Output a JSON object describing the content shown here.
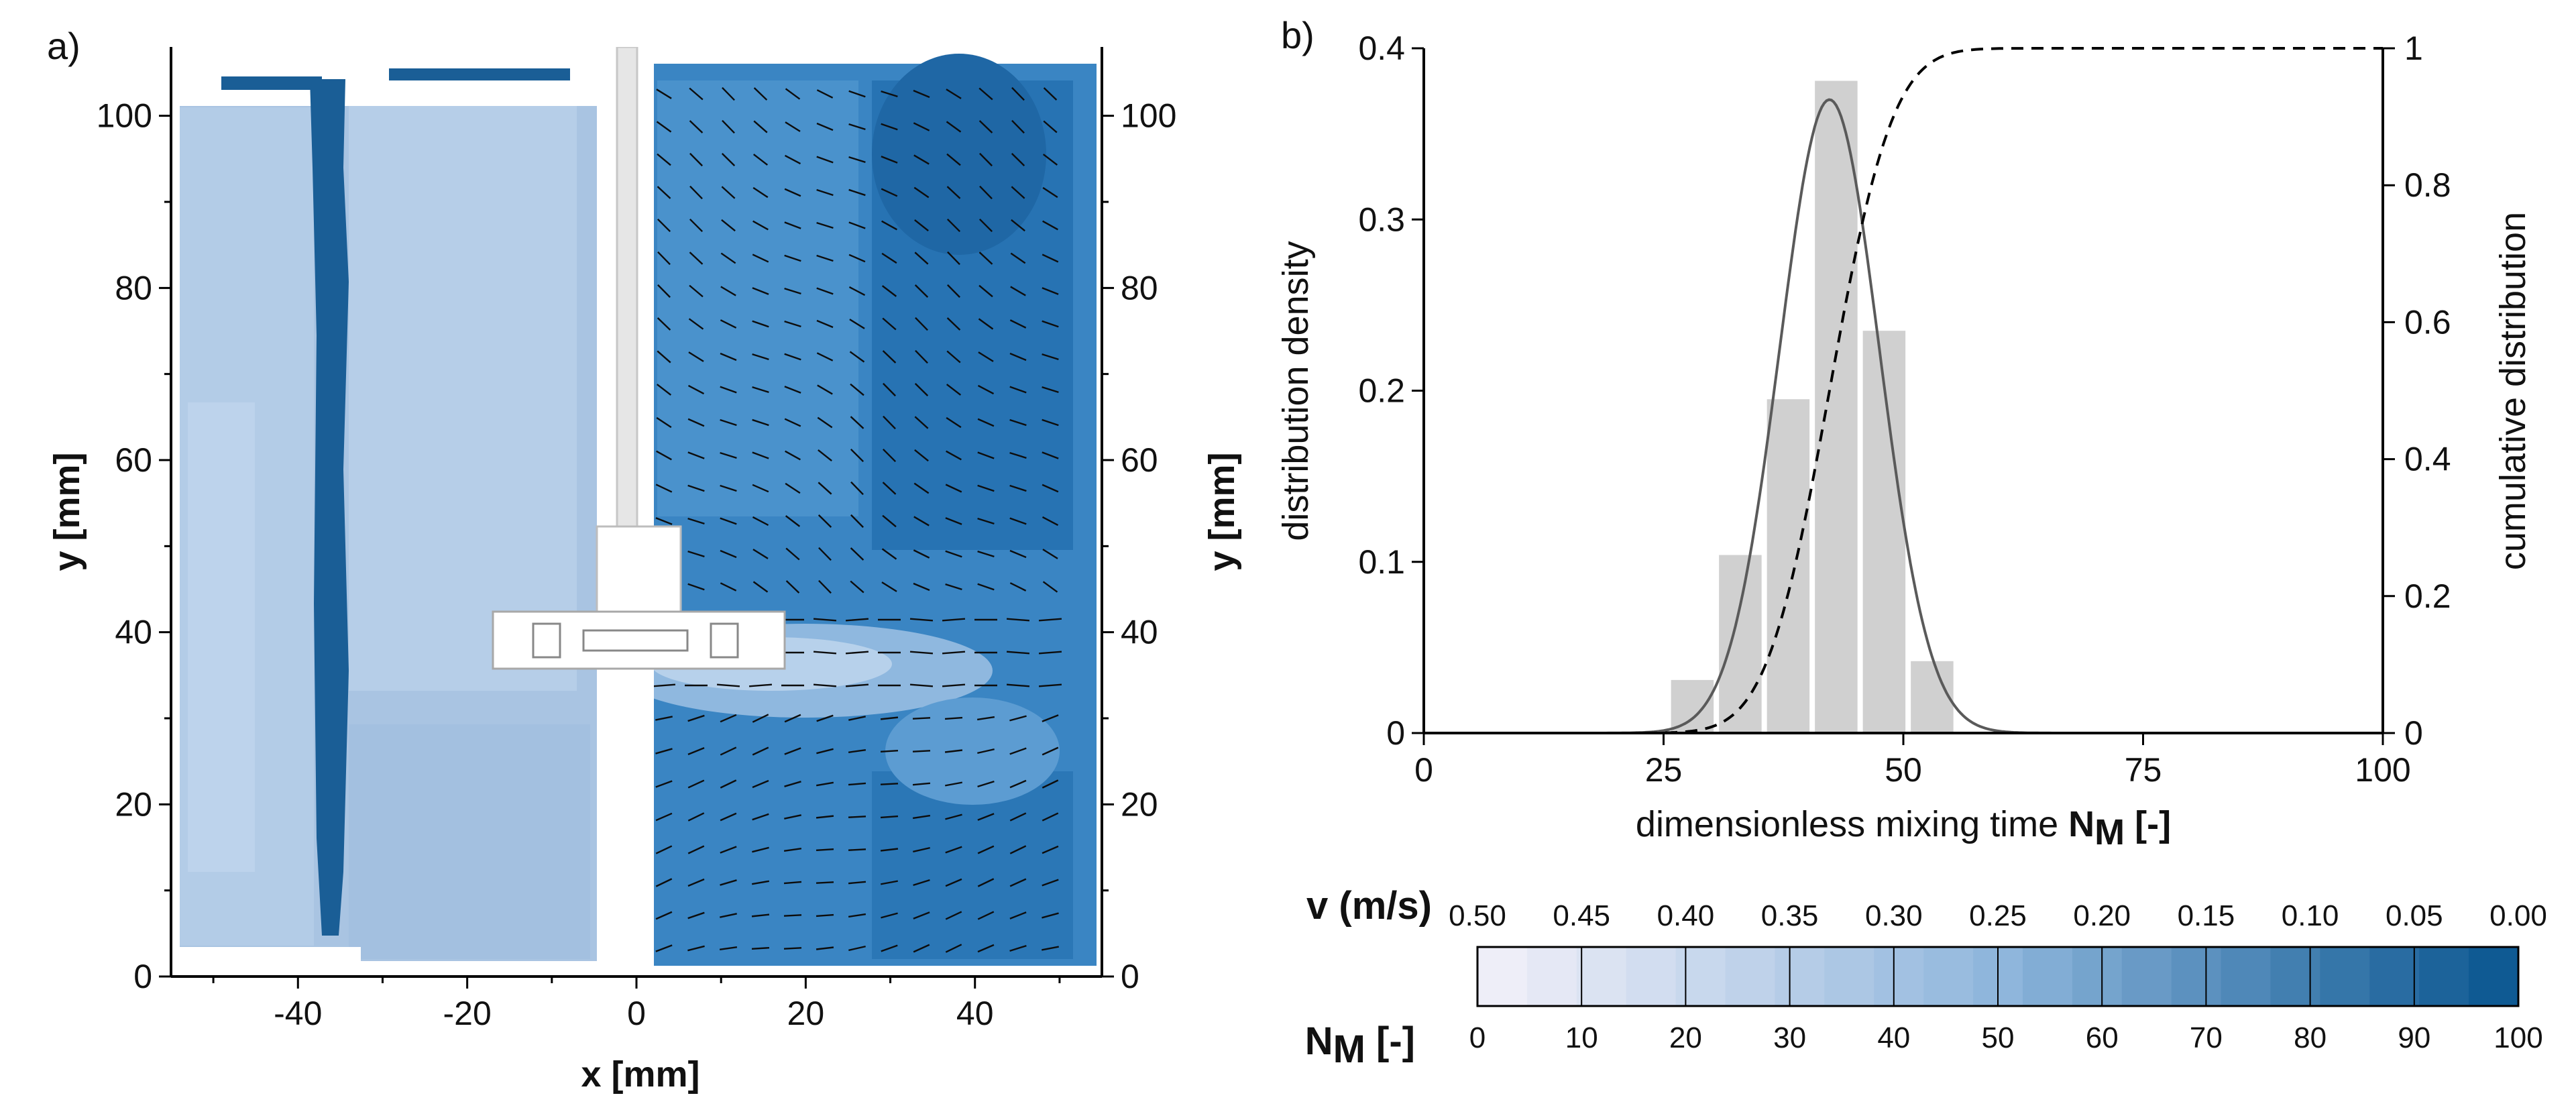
{
  "colors": {
    "scale_light": "#eeeef8",
    "scale_mid": "#8fb6dc",
    "scale_dark": "#0f5a93",
    "hist_bar": "#d0d0d0",
    "density_line": "#5a5a5a",
    "cumulative_line": "#000000",
    "impeller": "#ffffff"
  },
  "panel_a": {
    "label": "a)",
    "xlabel": "x [mm]",
    "ylabel_left": "y [mm]",
    "ylabel_right": "y [mm]",
    "x_ticks": [
      "-40",
      "-20",
      "0",
      "20",
      "40"
    ],
    "y_ticks": [
      "0",
      "20",
      "40",
      "60",
      "80",
      "100"
    ],
    "chart_data": {
      "type": "contour_vector_field",
      "xlim": [
        -55,
        55
      ],
      "ylim": [
        0,
        108
      ],
      "left_half_quantity": "N_M (mixing time)",
      "right_half_quantity": "v (velocity magnitude) with velocity vectors",
      "shaft_x": 0,
      "impeller_y": 40,
      "slow_mixing_band_x": -36
    }
  },
  "panel_b": {
    "label": "b)",
    "xlabel_prefix": "dimensionless mixing time ",
    "xlabel_symbol": "N",
    "xlabel_sub": "M",
    "xlabel_suffix": " [-]",
    "ylabel_left": "distribution density",
    "ylabel_right": "cumulative distribution",
    "x_ticks": [
      "0",
      "25",
      "50",
      "75",
      "100"
    ],
    "y_ticks_left": [
      "0",
      "0.1",
      "0.2",
      "0.3",
      "0.4"
    ],
    "y_ticks_right": [
      "0",
      "0.2",
      "0.4",
      "0.6",
      "0.8",
      "1"
    ],
    "chart_data": {
      "type": "bar",
      "xlim": [
        0,
        100
      ],
      "ylim": [
        0,
        0.4
      ],
      "ylim_right": [
        0,
        1
      ],
      "bin_width": 5,
      "bins": [
        {
          "center": 23,
          "value": 0.0
        },
        {
          "center": 28,
          "value": 0.031
        },
        {
          "center": 33,
          "value": 0.104
        },
        {
          "center": 38,
          "value": 0.195
        },
        {
          "center": 43,
          "value": 0.381
        },
        {
          "center": 48,
          "value": 0.235
        },
        {
          "center": 53,
          "value": 0.042
        }
      ],
      "density_curve": {
        "name": "distribution density fit",
        "mean": 42.3,
        "sd": 5.2,
        "scale": 0.37
      },
      "cumulative_curve": {
        "name": "cumulative distribution",
        "mean": 42.3,
        "sd": 5.2
      }
    }
  },
  "colorbar": {
    "v_label": "v (m/s)",
    "nm_label_symbol": "N",
    "nm_label_sub": "M",
    "nm_label_suffix": " [-]",
    "v_ticks": [
      "0.50",
      "0.45",
      "0.40",
      "0.35",
      "0.30",
      "0.25",
      "0.20",
      "0.15",
      "0.10",
      "0.05",
      "0.00"
    ],
    "nm_ticks": [
      "0",
      "10",
      "20",
      "30",
      "40",
      "50",
      "60",
      "70",
      "80",
      "90",
      "100"
    ],
    "levels": 21
  }
}
